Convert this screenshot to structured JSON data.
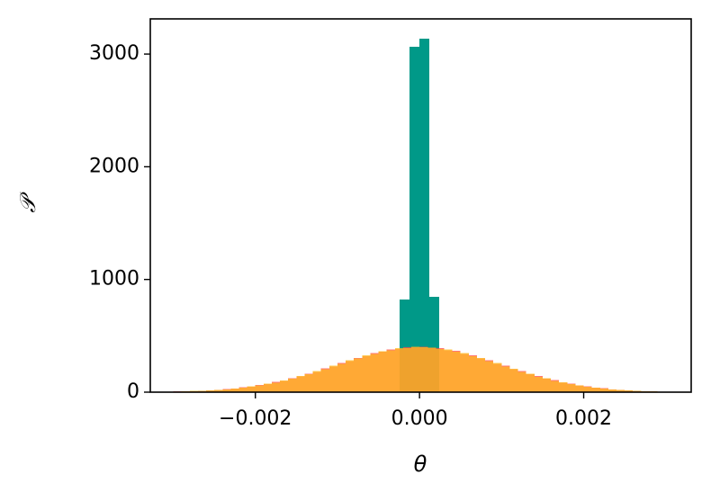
{
  "chart_data": {
    "type": "histogram",
    "x_label": "θ",
    "y_label": "𝒫",
    "xlim": [
      -0.00328,
      0.00331
    ],
    "ylim": [
      0,
      3312
    ],
    "xticks": [
      {
        "value": -0.002,
        "label": "−0.002"
      },
      {
        "value": 0,
        "label": "0.000"
      },
      0.002
    ],
    "yticks": [
      0,
      1000,
      2000,
      3000
    ],
    "grid": false,
    "series": [
      {
        "color": "#009988",
        "opacity": 1,
        "bins": [
          -0.00024,
          -0.00012,
          0,
          0.00012,
          0.00024
        ],
        "values": [
          822,
          3064,
          3136,
          846
        ]
      },
      {
        "color": "#ff4b4b",
        "opacity": 0.75,
        "bins": [
          -0.003,
          -0.0029,
          -0.0028,
          -0.0027,
          -0.0026,
          -0.0025,
          -0.0024,
          -0.0023,
          -0.0022,
          -0.0021,
          -0.002,
          -0.0019,
          -0.0018,
          -0.0017,
          -0.0016,
          -0.0015,
          -0.0014,
          -0.0013,
          -0.0012,
          -0.0011,
          -0.001,
          -0.0009,
          -0.0008,
          -0.0007,
          -0.0006,
          -0.0005,
          -0.0004,
          -0.0003,
          -0.0002,
          -0.0001,
          0,
          0.0001,
          0.0002,
          0.0003,
          0.0004,
          0.0005,
          0.0006,
          0.0007,
          0.0008,
          0.0009,
          0.001,
          0.0011,
          0.0012,
          0.0013,
          0.0014,
          0.0015,
          0.0016,
          0.0017,
          0.0018,
          0.0019,
          0.002,
          0.0021,
          0.0022,
          0.0023,
          0.0024,
          0.0025,
          0.0026,
          0.0027,
          0.0028,
          0.0029,
          0.003
        ],
        "values": [
          6,
          8,
          8,
          13,
          16,
          18,
          27,
          30,
          42,
          47,
          62,
          70,
          90,
          100,
          124,
          138,
          165,
          180,
          210,
          228,
          258,
          275,
          305,
          320,
          348,
          358,
          380,
          385,
          400,
          398,
          402,
          394,
          390,
          372,
          366,
          340,
          328,
          298,
          283,
          252,
          235,
          204,
          186,
          158,
          143,
          118,
          106,
          84,
          75,
          58,
          51,
          38,
          34,
          24,
          21,
          14,
          13,
          9,
          7,
          5
        ]
      },
      {
        "color": "#ffba1f",
        "opacity": 0.75,
        "bins": [
          -0.003,
          -0.0029,
          -0.0028,
          -0.0027,
          -0.0026,
          -0.0025,
          -0.0024,
          -0.0023,
          -0.0022,
          -0.0021,
          -0.002,
          -0.0019,
          -0.0018,
          -0.0017,
          -0.0016,
          -0.0015,
          -0.0014,
          -0.0013,
          -0.0012,
          -0.0011,
          -0.001,
          -0.0009,
          -0.0008,
          -0.0007,
          -0.0006,
          -0.0005,
          -0.0004,
          -0.0003,
          -0.0002,
          -0.0001,
          0,
          0.0001,
          0.0002,
          0.0003,
          0.0004,
          0.0005,
          0.0006,
          0.0007,
          0.0008,
          0.0009,
          0.001,
          0.0011,
          0.0012,
          0.0013,
          0.0014,
          0.0015,
          0.0016,
          0.0017,
          0.0018,
          0.0019,
          0.002,
          0.0021,
          0.0022,
          0.0023,
          0.0024,
          0.0025,
          0.0026,
          0.0027,
          0.0028,
          0.0029,
          0.003
        ],
        "values": [
          4,
          6,
          10,
          11,
          14,
          21,
          24,
          33,
          38,
          50,
          58,
          74,
          85,
          105,
          118,
          142,
          158,
          186,
          204,
          234,
          252,
          282,
          300,
          327,
          341,
          365,
          373,
          391,
          393,
          405,
          398,
          397,
          385,
          379,
          360,
          346,
          321,
          305,
          276,
          258,
          228,
          209,
          180,
          163,
          137,
          122,
          101,
          88,
          70,
          61,
          48,
          41,
          31,
          25,
          19,
          15,
          11,
          8,
          6,
          4
        ]
      }
    ]
  }
}
